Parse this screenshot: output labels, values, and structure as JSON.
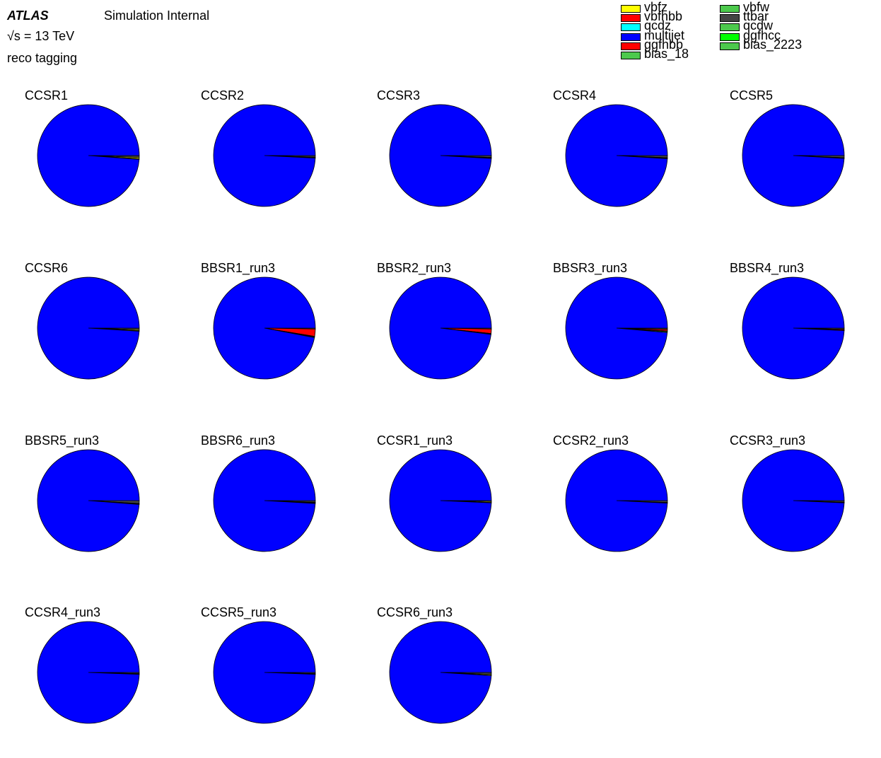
{
  "header": {
    "atlas": "ATLAS",
    "status": "Simulation Internal",
    "energy": "s = 13 TeV",
    "tagging": "reco tagging"
  },
  "legend": [
    {
      "name": "vbfz",
      "color": "#ffff00"
    },
    {
      "name": "vbfhbb",
      "color": "#ff0000"
    },
    {
      "name": "qcdz",
      "color": "#00ffff"
    },
    {
      "name": "multijet",
      "color": "#0000ff"
    },
    {
      "name": "ggfhbb",
      "color": "#ff0000"
    },
    {
      "name": "bias_18",
      "color": "#4cc94c"
    },
    {
      "name": "vbfw",
      "color": "#4cc94c"
    },
    {
      "name": "ttbar",
      "color": "#444444"
    },
    {
      "name": "qcdw",
      "color": "#4cc94c"
    },
    {
      "name": "ggfhcc",
      "color": "#00ff00"
    },
    {
      "name": "bias_2223",
      "color": "#4cc94c"
    }
  ],
  "chart_data": [
    {
      "type": "pie",
      "title": "CCSR1",
      "categories": [
        "multijet",
        "ttbar",
        "vbfz",
        "bias_18"
      ],
      "values": [
        98.8,
        0.6,
        0.4,
        0.2
      ]
    },
    {
      "type": "pie",
      "title": "CCSR2",
      "categories": [
        "multijet",
        "ttbar",
        "vbfz",
        "bias_18"
      ],
      "values": [
        99.2,
        0.5,
        0.2,
        0.1
      ]
    },
    {
      "type": "pie",
      "title": "CCSR3",
      "categories": [
        "multijet",
        "ttbar",
        "vbfz",
        "bias_18"
      ],
      "values": [
        99.1,
        0.6,
        0.2,
        0.1
      ]
    },
    {
      "type": "pie",
      "title": "CCSR4",
      "categories": [
        "multijet",
        "ttbar",
        "vbfz",
        "bias_18"
      ],
      "values": [
        99.0,
        0.7,
        0.2,
        0.1
      ]
    },
    {
      "type": "pie",
      "title": "CCSR5",
      "categories": [
        "multijet",
        "ttbar",
        "vbfz",
        "bias_18"
      ],
      "values": [
        99.1,
        0.7,
        0.1,
        0.1
      ]
    },
    {
      "type": "pie",
      "title": "CCSR6",
      "categories": [
        "multijet",
        "ttbar",
        "vbfz",
        "bias_18"
      ],
      "values": [
        99.0,
        0.5,
        0.3,
        0.2
      ]
    },
    {
      "type": "pie",
      "title": "BBSR1_run3",
      "categories": [
        "multijet",
        "ttbar",
        "ggfhbb",
        "vbfhbb",
        "bias_2223"
      ],
      "values": [
        97.0,
        0.3,
        2.3,
        0.2,
        0.2
      ]
    },
    {
      "type": "pie",
      "title": "BBSR2_run3",
      "categories": [
        "multijet",
        "ttbar",
        "ggfhbb",
        "vbfhbb",
        "bias_2223"
      ],
      "values": [
        98.0,
        0.3,
        1.4,
        0.2,
        0.1
      ]
    },
    {
      "type": "pie",
      "title": "BBSR3_run3",
      "categories": [
        "multijet",
        "ttbar",
        "ggfhbb",
        "vbfhbb",
        "bias_2223"
      ],
      "values": [
        98.6,
        0.4,
        0.5,
        0.2,
        0.3
      ]
    },
    {
      "type": "pie",
      "title": "BBSR4_run3",
      "categories": [
        "multijet",
        "ttbar",
        "ggfhbb",
        "vbfhbb",
        "bias_2223"
      ],
      "values": [
        99.2,
        0.4,
        0.3,
        0.05,
        0.05
      ]
    },
    {
      "type": "pie",
      "title": "BBSR5_run3",
      "categories": [
        "multijet",
        "ttbar",
        "ggfhbb",
        "vbfhbb",
        "bias_2223"
      ],
      "values": [
        98.8,
        0.9,
        0.1,
        0.1,
        0.1
      ]
    },
    {
      "type": "pie",
      "title": "BBSR6_run3",
      "categories": [
        "multijet",
        "ttbar",
        "ggfhbb",
        "vbfhbb",
        "bias_2223"
      ],
      "values": [
        99.1,
        0.5,
        0.1,
        0.1,
        0.2
      ]
    },
    {
      "type": "pie",
      "title": "CCSR1_run3",
      "categories": [
        "multijet",
        "ttbar",
        "vbfz",
        "bias_2223"
      ],
      "values": [
        99.3,
        0.3,
        0.3,
        0.1
      ]
    },
    {
      "type": "pie",
      "title": "CCSR2_run3",
      "categories": [
        "multijet",
        "ttbar",
        "vbfz",
        "bias_2223"
      ],
      "values": [
        99.2,
        0.6,
        0.1,
        0.1
      ]
    },
    {
      "type": "pie",
      "title": "CCSR3_run3",
      "categories": [
        "multijet",
        "ttbar",
        "vbfz",
        "bias_2223"
      ],
      "values": [
        99.3,
        0.5,
        0.1,
        0.1
      ]
    },
    {
      "type": "pie",
      "title": "CCSR4_run3",
      "categories": [
        "multijet",
        "ttbar",
        "vbfz",
        "bias_2223"
      ],
      "values": [
        99.4,
        0.4,
        0.1,
        0.1
      ]
    },
    {
      "type": "pie",
      "title": "CCSR5_run3",
      "categories": [
        "multijet",
        "ttbar",
        "vbfz",
        "bias_2223"
      ],
      "values": [
        99.4,
        0.4,
        0.1,
        0.1
      ]
    },
    {
      "type": "pie",
      "title": "CCSR6_run3",
      "categories": [
        "multijet",
        "ttbar",
        "vbfz",
        "bias_2223"
      ],
      "values": [
        99.0,
        0.6,
        0.3,
        0.1
      ]
    }
  ]
}
